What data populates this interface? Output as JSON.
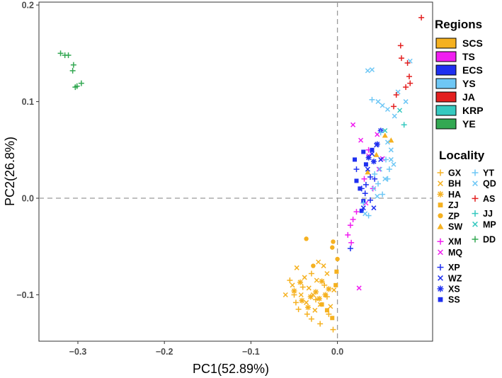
{
  "chart_data": {
    "type": "scatter",
    "xlabel": "PC1(52.89%)",
    "ylabel": "PC2(26.8%)",
    "xlim": [
      -0.345,
      0.11
    ],
    "ylim": [
      -0.148,
      0.203
    ],
    "x_ticks": [
      -0.3,
      -0.2,
      -0.1,
      0.0
    ],
    "x_tick_labels": [
      "−0.3",
      "−0.2",
      "−0.1",
      "0.0"
    ],
    "y_ticks": [
      -0.1,
      0.0,
      0.1,
      0.2
    ],
    "y_tick_labels": [
      "−0.1",
      "0.0",
      "0.1",
      "0.2"
    ],
    "reference_lines": {
      "x": 0.0,
      "y": 0.0,
      "style": "dashed"
    },
    "grid": false,
    "legend_position": "right",
    "regions_legend": {
      "title": "Regions",
      "items": [
        {
          "label": "SCS",
          "color": "#F5B120"
        },
        {
          "label": "TS",
          "color": "#F01EF0"
        },
        {
          "label": "ECS",
          "color": "#1E2FF0"
        },
        {
          "label": "YS",
          "color": "#6EC7F5"
        },
        {
          "label": "JA",
          "color": "#E32020"
        },
        {
          "label": "KRP",
          "color": "#36C9C0"
        },
        {
          "label": "YE",
          "color": "#33A852"
        }
      ]
    },
    "locality_legend": {
      "title": "Locality",
      "columns": [
        [
          [
            {
              "label": "GX",
              "marker": "plus",
              "color": "#F5B120"
            },
            {
              "label": "BH",
              "marker": "cross",
              "color": "#F5B120"
            },
            {
              "label": "HA",
              "marker": "asterisk",
              "color": "#F5B120"
            },
            {
              "label": "ZJ",
              "marker": "square",
              "color": "#F5B120"
            },
            {
              "label": "ZP",
              "marker": "circle",
              "color": "#F5B120"
            },
            {
              "label": "SW",
              "marker": "triangle",
              "color": "#F5B120"
            }
          ],
          [
            {
              "label": "XM",
              "marker": "plus",
              "color": "#F01EF0"
            },
            {
              "label": "MQ",
              "marker": "cross",
              "color": "#F01EF0"
            }
          ],
          [
            {
              "label": "XP",
              "marker": "plus",
              "color": "#1E2FF0"
            },
            {
              "label": "WZ",
              "marker": "cross",
              "color": "#1E2FF0"
            },
            {
              "label": "XS",
              "marker": "asterisk",
              "color": "#1E2FF0"
            },
            {
              "label": "SS",
              "marker": "square",
              "color": "#1E2FF0"
            }
          ]
        ],
        [
          [
            {
              "label": "YT",
              "marker": "plus",
              "color": "#6EC7F5"
            },
            {
              "label": "QD",
              "marker": "cross",
              "color": "#6EC7F5"
            }
          ],
          [
            {
              "label": "AS",
              "marker": "plus",
              "color": "#E32020"
            }
          ],
          [
            {
              "label": "JJ",
              "marker": "plus",
              "color": "#36C9C0"
            },
            {
              "label": "MP",
              "marker": "cross",
              "color": "#36C9C0"
            }
          ],
          [
            {
              "label": "DD",
              "marker": "plus",
              "color": "#33A852"
            }
          ]
        ]
      ]
    },
    "series": [
      {
        "name": "GX",
        "region": "SCS",
        "marker": "plus",
        "color": "#F5B120",
        "points": [
          [
            -0.055,
            -0.085
          ],
          [
            -0.05,
            -0.1
          ],
          [
            -0.045,
            -0.115
          ],
          [
            -0.04,
            -0.092
          ],
          [
            -0.035,
            -0.12
          ],
          [
            -0.03,
            -0.078
          ],
          [
            -0.025,
            -0.105
          ],
          [
            -0.02,
            -0.13
          ],
          [
            -0.015,
            -0.09
          ],
          [
            -0.01,
            -0.12
          ],
          [
            -0.005,
            -0.136
          ],
          [
            -0.03,
            -0.125
          ],
          [
            -0.048,
            -0.108
          ],
          [
            -0.012,
            -0.102
          ]
        ]
      },
      {
        "name": "BH",
        "region": "SCS",
        "marker": "cross",
        "color": "#F5B120",
        "points": [
          [
            -0.06,
            -0.1
          ],
          [
            -0.052,
            -0.09
          ],
          [
            -0.047,
            -0.072
          ],
          [
            -0.042,
            -0.1
          ],
          [
            -0.038,
            -0.082
          ],
          [
            -0.033,
            -0.093
          ],
          [
            -0.028,
            -0.1
          ],
          [
            -0.024,
            -0.085
          ],
          [
            -0.02,
            -0.11
          ],
          [
            -0.016,
            -0.07
          ],
          [
            -0.012,
            -0.078
          ],
          [
            -0.008,
            -0.112
          ],
          [
            -0.004,
            -0.095
          ],
          [
            -0.022,
            -0.066
          ],
          [
            -0.036,
            -0.108
          ],
          [
            -0.026,
            -0.116
          ]
        ]
      },
      {
        "name": "HA",
        "region": "SCS",
        "marker": "asterisk",
        "color": "#F5B120",
        "points": [
          [
            -0.05,
            -0.096
          ],
          [
            -0.043,
            -0.087
          ],
          [
            -0.031,
            -0.102
          ],
          [
            -0.025,
            -0.097
          ],
          [
            -0.018,
            -0.086
          ],
          [
            -0.014,
            -0.1
          ],
          [
            -0.034,
            -0.113
          ],
          [
            -0.021,
            -0.104
          ],
          [
            -0.01,
            -0.094
          ],
          [
            -0.041,
            -0.106
          ]
        ]
      },
      {
        "name": "ZJ",
        "region": "SCS",
        "marker": "square",
        "color": "#F5B120",
        "points": [
          [
            -0.018,
            -0.11
          ],
          [
            -0.012,
            -0.116
          ],
          [
            -0.006,
            -0.124
          ],
          [
            -0.001,
            -0.076
          ],
          [
            -0.002,
            -0.09
          ]
        ]
      },
      {
        "name": "ZP",
        "region": "SCS",
        "marker": "circle",
        "color": "#F5B120",
        "points": [
          [
            -0.036,
            -0.042
          ],
          [
            -0.005,
            -0.045
          ],
          [
            -0.006,
            -0.051
          ],
          [
            -0.028,
            -0.07
          ],
          [
            0.0,
            -0.063
          ]
        ]
      },
      {
        "name": "SW",
        "region": "SCS",
        "marker": "triangle",
        "color": "#F5B120",
        "points": [
          [
            0.035,
            0.027
          ],
          [
            0.045,
            0.045
          ],
          [
            0.055,
            0.065
          ],
          [
            0.062,
            0.06
          ]
        ]
      },
      {
        "name": "XM",
        "region": "TS",
        "marker": "plus",
        "color": "#F01EF0",
        "points": [
          [
            0.012,
            -0.038
          ],
          [
            0.015,
            -0.028
          ],
          [
            0.018,
            -0.022
          ],
          [
            0.022,
            -0.014
          ],
          [
            0.031,
            0.02
          ],
          [
            0.036,
            0.05
          ],
          [
            0.041,
            0.01
          ],
          [
            0.016,
            -0.046
          ]
        ]
      },
      {
        "name": "MQ",
        "region": "TS",
        "marker": "cross",
        "color": "#F01EF0",
        "points": [
          [
            0.018,
            0.076
          ],
          [
            0.027,
            0.06
          ],
          [
            0.036,
            0.044
          ],
          [
            0.046,
            0.066
          ],
          [
            0.025,
            -0.093
          ],
          [
            0.033,
            -0.005
          ],
          [
            0.048,
            0.03
          ],
          [
            0.052,
            0.041
          ]
        ]
      },
      {
        "name": "XP",
        "region": "ECS",
        "marker": "plus",
        "color": "#1E2FF0",
        "points": [
          [
            0.022,
            0.03
          ],
          [
            0.028,
            0.01
          ],
          [
            0.033,
            0.014
          ],
          [
            0.038,
            0.022
          ],
          [
            0.043,
            0.02
          ],
          [
            0.032,
            0.005
          ],
          [
            0.015,
            -0.052
          ],
          [
            0.038,
            -0.002
          ]
        ]
      },
      {
        "name": "WZ",
        "region": "ECS",
        "marker": "cross",
        "color": "#1E2FF0",
        "points": [
          [
            0.03,
            -0.01
          ],
          [
            0.035,
            0.03
          ],
          [
            0.04,
            0.046
          ],
          [
            0.045,
            0.055
          ],
          [
            0.05,
            0.04
          ],
          [
            0.042,
            -0.01
          ]
        ]
      },
      {
        "name": "XS",
        "region": "ECS",
        "marker": "asterisk",
        "color": "#1E2FF0",
        "points": [
          [
            0.05,
            0.07
          ],
          [
            0.046,
            0.056
          ],
          [
            0.042,
            0.038
          ],
          [
            0.036,
            0.042
          ]
        ]
      },
      {
        "name": "SS",
        "region": "ECS",
        "marker": "square",
        "color": "#1E2FF0",
        "points": [
          [
            0.02,
            0.04
          ],
          [
            0.03,
            0.048
          ],
          [
            0.033,
            0.035
          ],
          [
            0.022,
            0.018
          ],
          [
            0.03,
            -0.003
          ],
          [
            0.026,
            0.01
          ],
          [
            0.028,
            -0.013
          ],
          [
            0.04,
            0.05
          ]
        ]
      },
      {
        "name": "YT",
        "region": "YS",
        "marker": "plus",
        "color": "#6EC7F5",
        "points": [
          [
            0.04,
            0.102
          ],
          [
            0.05,
            0.068
          ],
          [
            0.056,
            0.04
          ],
          [
            0.06,
            0.03
          ],
          [
            0.047,
            0.015
          ],
          [
            0.036,
            -0.018
          ],
          [
            0.03,
            -0.005
          ],
          [
            0.052,
            0.004
          ],
          [
            0.058,
            0.02
          ],
          [
            0.043,
            0.025
          ]
        ]
      },
      {
        "name": "QD",
        "region": "YS",
        "marker": "cross",
        "color": "#6EC7F5",
        "points": [
          [
            0.035,
            0.132
          ],
          [
            0.04,
            0.133
          ],
          [
            0.052,
            0.096
          ],
          [
            0.047,
            0.1
          ],
          [
            0.058,
            0.092
          ],
          [
            0.066,
            0.085
          ],
          [
            0.07,
            0.11
          ],
          [
            0.079,
            0.1
          ],
          [
            0.084,
            0.142
          ],
          [
            0.062,
            0.05
          ],
          [
            0.065,
            0.035
          ],
          [
            0.055,
            0.02
          ],
          [
            0.042,
            0.01
          ],
          [
            0.049,
            0.03
          ],
          [
            0.058,
            0.058
          ],
          [
            0.062,
            0.04
          ],
          [
            0.032,
            -0.016
          ],
          [
            0.046,
            0.002
          ]
        ]
      },
      {
        "name": "AS",
        "region": "JA",
        "marker": "plus",
        "color": "#E32020",
        "points": [
          [
            0.065,
            0.095
          ],
          [
            0.068,
            0.107
          ],
          [
            0.073,
            0.158
          ],
          [
            0.074,
            0.145
          ],
          [
            0.079,
            0.115
          ],
          [
            0.083,
            0.126
          ],
          [
            0.084,
            0.119
          ],
          [
            0.081,
            0.14
          ],
          [
            0.097,
            0.187
          ]
        ]
      },
      {
        "name": "JJ",
        "region": "KRP",
        "marker": "plus",
        "color": "#36C9C0",
        "points": [
          [
            0.077,
            0.076
          ]
        ]
      },
      {
        "name": "MP",
        "region": "KRP",
        "marker": "cross",
        "color": "#36C9C0",
        "points": [
          [
            0.072,
            0.091
          ],
          [
            0.055,
            0.07
          ]
        ]
      },
      {
        "name": "DD",
        "region": "YE",
        "marker": "plus",
        "color": "#33A852",
        "points": [
          [
            -0.32,
            0.15
          ],
          [
            -0.315,
            0.148
          ],
          [
            -0.311,
            0.148
          ],
          [
            -0.305,
            0.138
          ],
          [
            -0.306,
            0.132
          ],
          [
            -0.303,
            0.115
          ],
          [
            -0.301,
            0.116
          ],
          [
            -0.296,
            0.119
          ]
        ]
      }
    ]
  }
}
